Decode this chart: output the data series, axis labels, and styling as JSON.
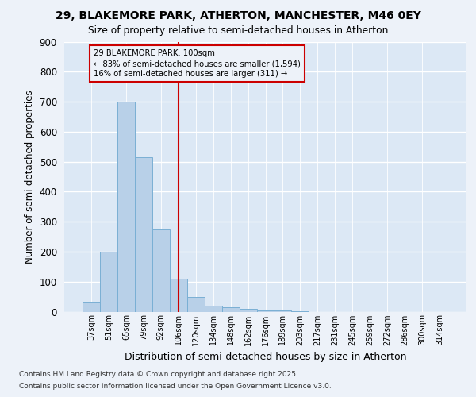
{
  "title1": "29, BLAKEMORE PARK, ATHERTON, MANCHESTER, M46 0EY",
  "title2": "Size of property relative to semi-detached houses in Atherton",
  "xlabel": "Distribution of semi-detached houses by size in Atherton",
  "ylabel": "Number of semi-detached properties",
  "categories": [
    "37sqm",
    "51sqm",
    "65sqm",
    "79sqm",
    "92sqm",
    "106sqm",
    "120sqm",
    "134sqm",
    "148sqm",
    "162sqm",
    "176sqm",
    "189sqm",
    "203sqm",
    "217sqm",
    "231sqm",
    "245sqm",
    "259sqm",
    "272sqm",
    "286sqm",
    "300sqm",
    "314sqm"
  ],
  "values": [
    33,
    200,
    700,
    515,
    275,
    110,
    50,
    20,
    15,
    10,
    5,
    3,
    1,
    0,
    0,
    0,
    0,
    0,
    0,
    0,
    0
  ],
  "bar_color": "#b8d0e8",
  "bar_edge_color": "#7aafd4",
  "vline_x": 5,
  "vline_color": "#cc0000",
  "annotation_title": "29 BLAKEMORE PARK: 100sqm",
  "annotation_line1": "← 83% of semi-detached houses are smaller (1,594)",
  "annotation_line2": "16% of semi-detached houses are larger (311) →",
  "annotation_box_edgecolor": "#cc0000",
  "ylim": [
    0,
    900
  ],
  "yticks": [
    0,
    100,
    200,
    300,
    400,
    500,
    600,
    700,
    800,
    900
  ],
  "footnote1": "Contains HM Land Registry data © Crown copyright and database right 2025.",
  "footnote2": "Contains public sector information licensed under the Open Government Licence v3.0.",
  "bg_color": "#edf2f9",
  "plot_bg_color": "#dce8f5"
}
